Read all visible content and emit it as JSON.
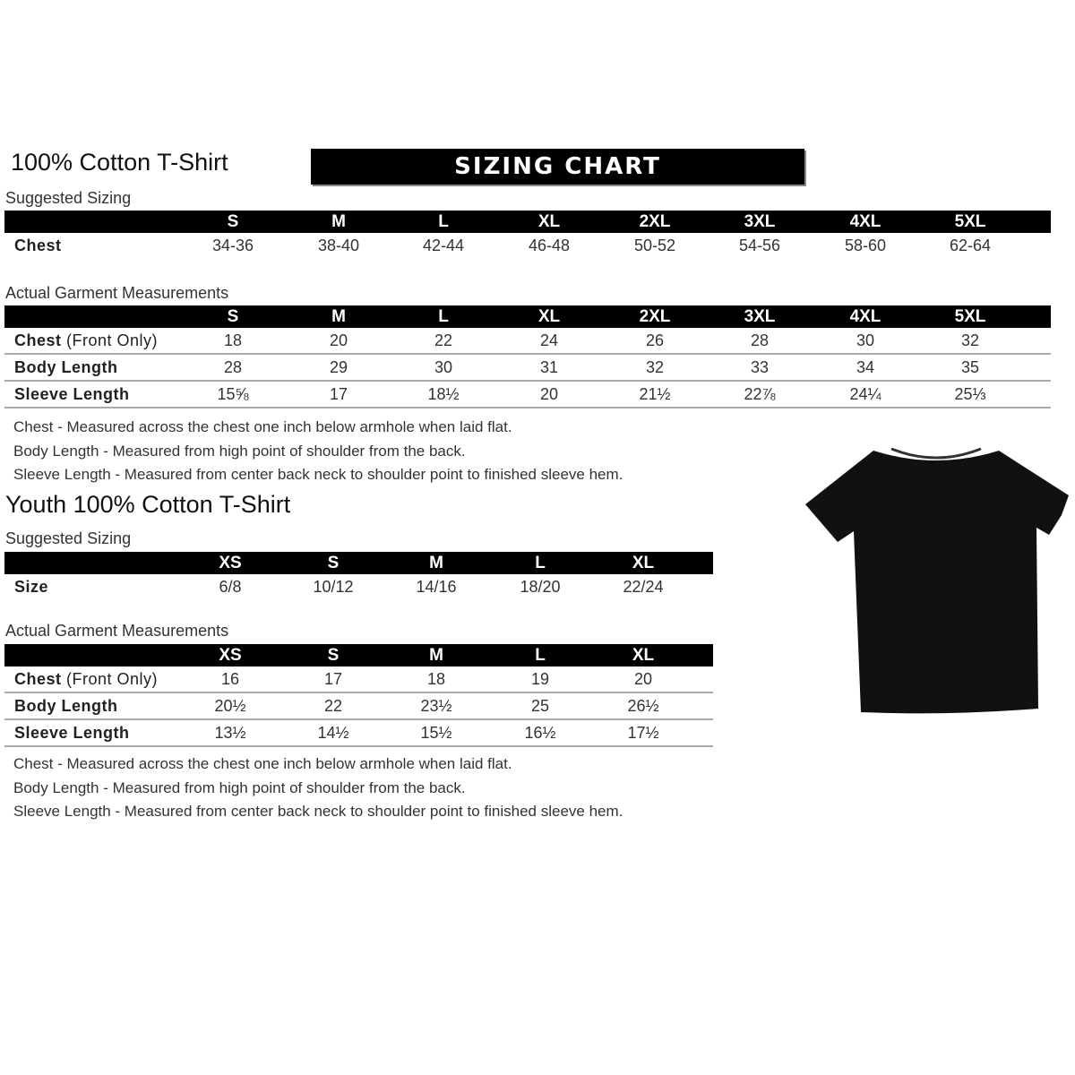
{
  "chart_title": "SIZING CHART",
  "adult": {
    "title": "100% Cotton T-Shirt",
    "suggested_label": "Suggested Sizing",
    "sizes": [
      "S",
      "M",
      "L",
      "XL",
      "2XL",
      "3XL",
      "4XL",
      "5XL"
    ],
    "suggested_rows": [
      {
        "label": "Chest",
        "label_extra": "",
        "values": [
          "34-36",
          "38-40",
          "42-44",
          "46-48",
          "50-52",
          "54-56",
          "58-60",
          "62-64"
        ]
      }
    ],
    "actual_label": "Actual Garment Measurements",
    "actual_rows": [
      {
        "label": "Chest",
        "label_extra": " (Front Only)",
        "values": [
          "18",
          "20",
          "22",
          "24",
          "26",
          "28",
          "30",
          "32"
        ]
      },
      {
        "label": "Body Length",
        "label_extra": "",
        "values": [
          "28",
          "29",
          "30",
          "31",
          "32",
          "33",
          "34",
          "35"
        ]
      },
      {
        "label": "Sleeve Length",
        "label_extra": "",
        "values": [
          "15⅝",
          "17",
          "18½",
          "20",
          "21½",
          "22⅞",
          "24¼",
          "25⅓"
        ]
      }
    ],
    "notes": [
      "Chest - Measured across the chest one inch below armhole when laid flat.",
      "Body Length - Measured from high point of shoulder from the back.",
      "Sleeve Length - Measured from center back neck to shoulder point to finished sleeve hem."
    ]
  },
  "youth": {
    "title": "Youth 100% Cotton T-Shirt",
    "suggested_label": "Suggested Sizing",
    "sizes": [
      "XS",
      "S",
      "M",
      "L",
      "XL"
    ],
    "suggested_rows": [
      {
        "label": "Size",
        "label_extra": "",
        "values": [
          "6/8",
          "10/12",
          "14/16",
          "18/20",
          "22/24"
        ]
      }
    ],
    "actual_label": "Actual Garment Measurements",
    "actual_rows": [
      {
        "label": "Chest",
        "label_extra": " (Front Only)",
        "values": [
          "16",
          "17",
          "18",
          "19",
          "20"
        ]
      },
      {
        "label": "Body Length",
        "label_extra": "",
        "values": [
          "20½",
          "22",
          "23½",
          "25",
          "26½"
        ]
      },
      {
        "label": "Sleeve Length",
        "label_extra": "",
        "values": [
          "13½",
          "14½",
          "15½",
          "16½",
          "17½"
        ]
      }
    ],
    "notes": [
      "Chest - Measured across the chest one inch below armhole when laid flat.",
      "Body Length - Measured from high point of shoulder from the back.",
      "Sleeve Length - Measured from center back neck to shoulder point to finished sleeve hem."
    ]
  },
  "colors": {
    "header_bg": "#000000",
    "shirt": "#111111"
  }
}
